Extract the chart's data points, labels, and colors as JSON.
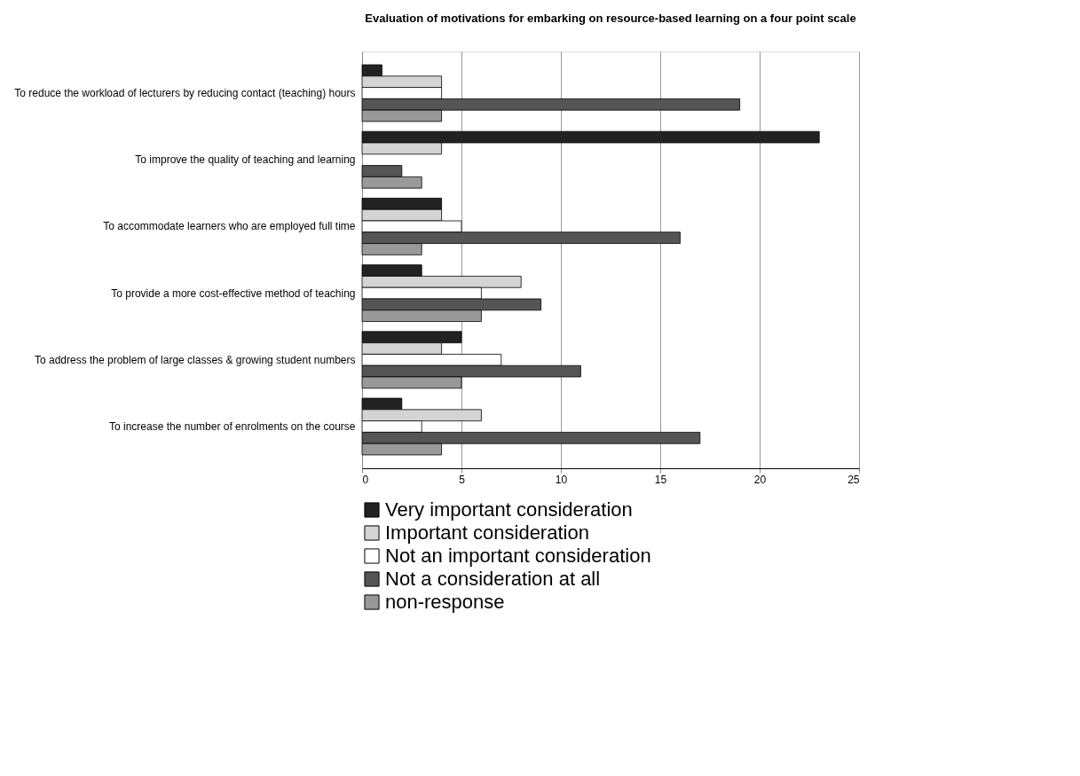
{
  "chart_data": {
    "type": "bar",
    "orientation": "horizontal",
    "title": "Evaluation of motivations for embarking on resource-based learning on a four point scale",
    "categories": [
      "To reduce the workload of lecturers by reducing contact (teaching) hours",
      "To improve the quality of teaching and learning",
      "To accommodate learners who are employed full time",
      "To provide a more cost-effective method of teaching",
      "To address the problem of large classes & growing student numbers",
      "To increase the number of enrolments on the course"
    ],
    "series": [
      {
        "name": "Very important consideration",
        "color": "#222222",
        "values": [
          1,
          23,
          4,
          3,
          5,
          2
        ]
      },
      {
        "name": "Important consideration",
        "color": "#d4d4d4",
        "values": [
          4,
          4,
          4,
          8,
          4,
          6
        ]
      },
      {
        "name": "Not an important consideration",
        "color": "#ffffff",
        "values": [
          4,
          0,
          5,
          6,
          7,
          3
        ]
      },
      {
        "name": "Not a consideration at all",
        "color": "#555555",
        "values": [
          19,
          2,
          16,
          9,
          11,
          17
        ]
      },
      {
        "name": "non-response",
        "color": "#999999",
        "values": [
          4,
          3,
          3,
          6,
          5,
          4
        ]
      }
    ],
    "xlim": [
      0,
      25
    ],
    "xticks": [
      0,
      5,
      10,
      15,
      20,
      25
    ],
    "grid": "x",
    "legend": "bottom left"
  }
}
